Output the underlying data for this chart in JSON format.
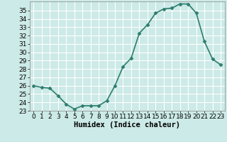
{
  "x": [
    0,
    1,
    2,
    3,
    4,
    5,
    6,
    7,
    8,
    9,
    10,
    11,
    12,
    13,
    14,
    15,
    16,
    17,
    18,
    19,
    20,
    21,
    22,
    23
  ],
  "y": [
    26.0,
    25.8,
    25.7,
    24.8,
    23.8,
    23.2,
    23.6,
    23.6,
    23.6,
    24.2,
    26.0,
    28.3,
    29.3,
    32.3,
    33.3,
    34.7,
    35.2,
    35.3,
    35.8,
    35.8,
    34.7,
    31.3,
    29.2,
    28.5
  ],
  "line_color": "#2e7d6e",
  "marker": "D",
  "marker_size": 2.5,
  "bg_color": "#cceae7",
  "grid_color": "#ffffff",
  "xlabel": "Humidex (Indice chaleur)",
  "ylim": [
    23,
    36
  ],
  "xlim": [
    -0.5,
    23.5
  ],
  "yticks": [
    23,
    24,
    25,
    26,
    27,
    28,
    29,
    30,
    31,
    32,
    33,
    34,
    35
  ],
  "xticks": [
    0,
    1,
    2,
    3,
    4,
    5,
    6,
    7,
    8,
    9,
    10,
    11,
    12,
    13,
    14,
    15,
    16,
    17,
    18,
    19,
    20,
    21,
    22,
    23
  ],
  "xlabel_fontsize": 7.5,
  "tick_fontsize": 6.5,
  "linewidth": 1.2
}
